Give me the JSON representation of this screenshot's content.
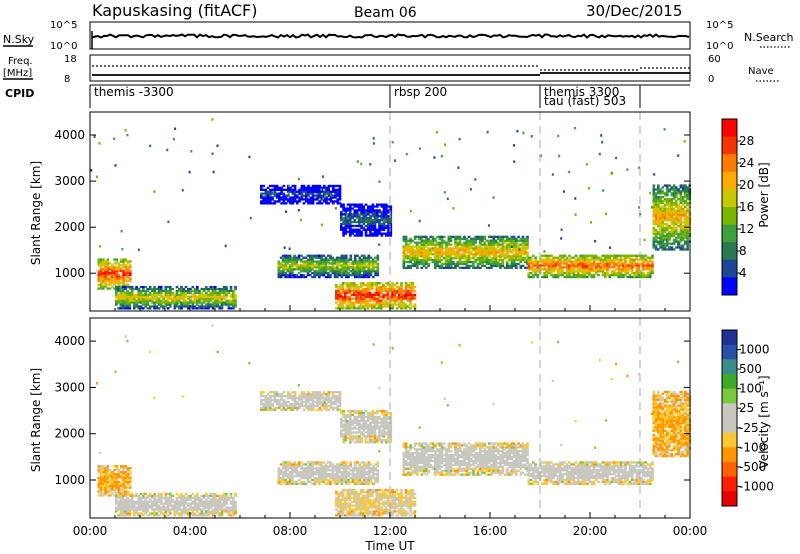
{
  "header": {
    "station": "Kapuskasing (fitACF)",
    "beam": "Beam 06",
    "date": "30/Dec/2015"
  },
  "summary_panels": {
    "nsky": {
      "label": "N.Sky",
      "ticks": [
        "10^5",
        "10^0"
      ],
      "right_label": "N.Search",
      "right_ticks": [
        "10^5",
        "10^0"
      ]
    },
    "freq": {
      "label_top": "Freq.",
      "label_bottom": "[MHz]",
      "ticks": [
        "18",
        "8"
      ],
      "right_label": "Nave",
      "right_ticks": [
        "60",
        "0"
      ]
    },
    "cpid": {
      "label": "CPID"
    }
  },
  "power_colorbar": {
    "label": "Power [dB]",
    "ticks": [
      "28",
      "24",
      "20",
      "16",
      "12",
      "8",
      "4"
    ],
    "colors": [
      "#ff0000",
      "#f03500",
      "#ff7a00",
      "#ffaa00",
      "#c8c800",
      "#78b400",
      "#3ca03c",
      "#287850",
      "#1e4696",
      "#0000ff"
    ]
  },
  "velocity_colorbar": {
    "label": "Velocity [m s⁻¹]",
    "ticks": [
      "1000",
      "500",
      "100",
      "25",
      "-25",
      "-100",
      "-500",
      "-1000"
    ],
    "colors": [
      "#1e3296",
      "#2850aa",
      "#3c8c8c",
      "#3caa28",
      "#78c83c",
      "#c8c8c0",
      "#c8c8c0",
      "#ffc832",
      "#ff9600",
      "#ff6400",
      "#ff1e00",
      "#e60000"
    ]
  },
  "axes": {
    "ylabel": "Slant Range [km]",
    "xlabel": "Time UT",
    "yticks": [
      "1000",
      "2000",
      "3000",
      "4000"
    ],
    "xticks": [
      "00:00",
      "04:00",
      "08:00",
      "12:00",
      "16:00",
      "20:00",
      "00:00"
    ]
  },
  "chart_data": {
    "type": "heatmap",
    "title": "Kapuskasing (fitACF)  Beam 06  30/Dec/2015",
    "xlabel": "Time UT",
    "ylabel": "Slant Range [km]",
    "xlim": [
      0,
      24
    ],
    "ylim": [
      180,
      4500
    ],
    "control_program_changes": [
      {
        "time_hr": 0.0,
        "label": "themis -3300"
      },
      {
        "time_hr": 12.0,
        "label": "rbsp 200"
      },
      {
        "time_hr": 18.0,
        "label": "themis 3300"
      },
      {
        "time_hr": 18.0,
        "label": "tau (fast) 503"
      },
      {
        "time_hr": 22.0,
        "label": ""
      }
    ],
    "scatter_features": [
      {
        "t0": 0.3,
        "t1": 1.6,
        "r0": 650,
        "r1": 1300,
        "power_db": 26,
        "velocity": -100
      },
      {
        "t0": 1.0,
        "t1": 5.8,
        "r0": 220,
        "r1": 700,
        "power_db": 18,
        "velocity": 0
      },
      {
        "t0": 6.8,
        "t1": 10.0,
        "r0": 2500,
        "r1": 2900,
        "power_db": 6,
        "velocity": 0
      },
      {
        "t0": 7.5,
        "t1": 11.5,
        "r0": 900,
        "r1": 1400,
        "power_db": 16,
        "velocity": 0
      },
      {
        "t0": 9.8,
        "t1": 13.0,
        "r0": 220,
        "r1": 800,
        "power_db": 27,
        "velocity": -25
      },
      {
        "t0": 10.0,
        "t1": 12.0,
        "r0": 1800,
        "r1": 2500,
        "power_db": 8,
        "velocity": 0
      },
      {
        "t0": 12.5,
        "t1": 17.5,
        "r0": 1100,
        "r1": 1800,
        "power_db": 20,
        "velocity": 0
      },
      {
        "t0": 17.5,
        "t1": 22.5,
        "r0": 900,
        "r1": 1400,
        "power_db": 24,
        "velocity": 0
      },
      {
        "t0": 22.5,
        "t1": 24.0,
        "r0": 1500,
        "r1": 2900,
        "power_db": 20,
        "velocity": -100
      }
    ]
  }
}
